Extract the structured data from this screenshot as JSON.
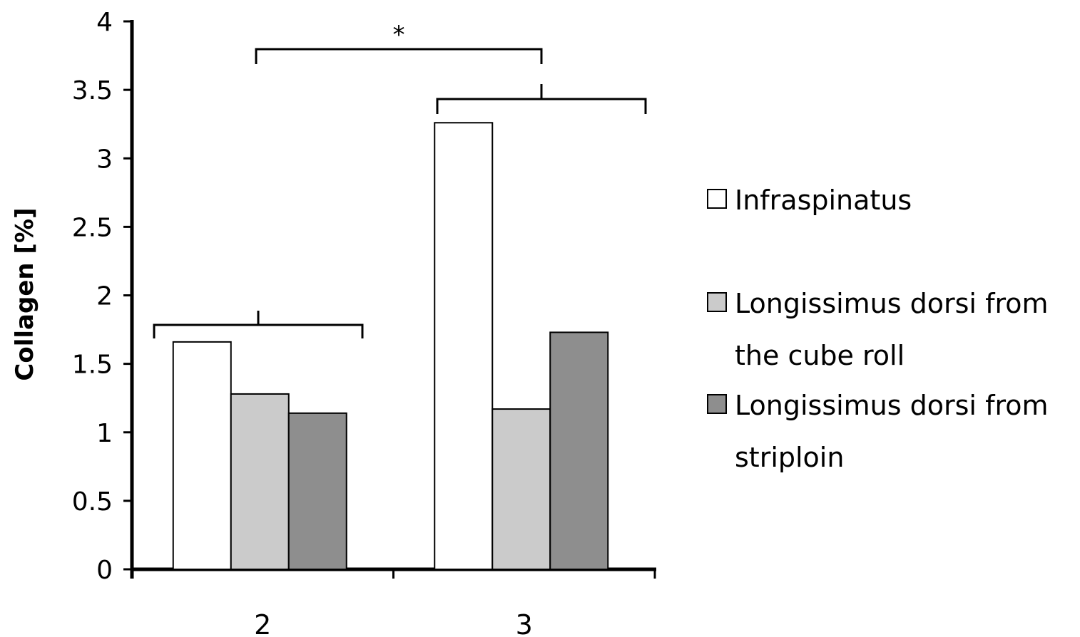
{
  "chart_data": {
    "type": "bar",
    "categories": [
      "2",
      "3"
    ],
    "series": [
      {
        "name": "Infraspinatus",
        "color": "#ffffff",
        "values": [
          1.66,
          3.26
        ]
      },
      {
        "name": "Longissimus dorsi from the cube roll",
        "name_lines": [
          "Longissimus dorsi from",
          "the cube roll"
        ],
        "color": "#cbcbcb",
        "values": [
          1.28,
          1.17
        ]
      },
      {
        "name": "Longissimus dorsi from striploin",
        "name_lines": [
          "Longissimus dorsi from",
          "striploin"
        ],
        "color": "#8e8e8e",
        "values": [
          1.14,
          1.73
        ]
      }
    ],
    "title": "",
    "xlabel": "",
    "ylabel": "Collagen [%]",
    "ylim": [
      0,
      4
    ],
    "yticks": [
      "0",
      "0.5",
      "1",
      "1.5",
      "2",
      "2.5",
      "3",
      "3.5",
      "4"
    ],
    "grid": false,
    "legend_position": "right",
    "annotations": [
      {
        "type": "significance",
        "text": "*",
        "between": [
          "2",
          "3"
        ]
      }
    ]
  }
}
